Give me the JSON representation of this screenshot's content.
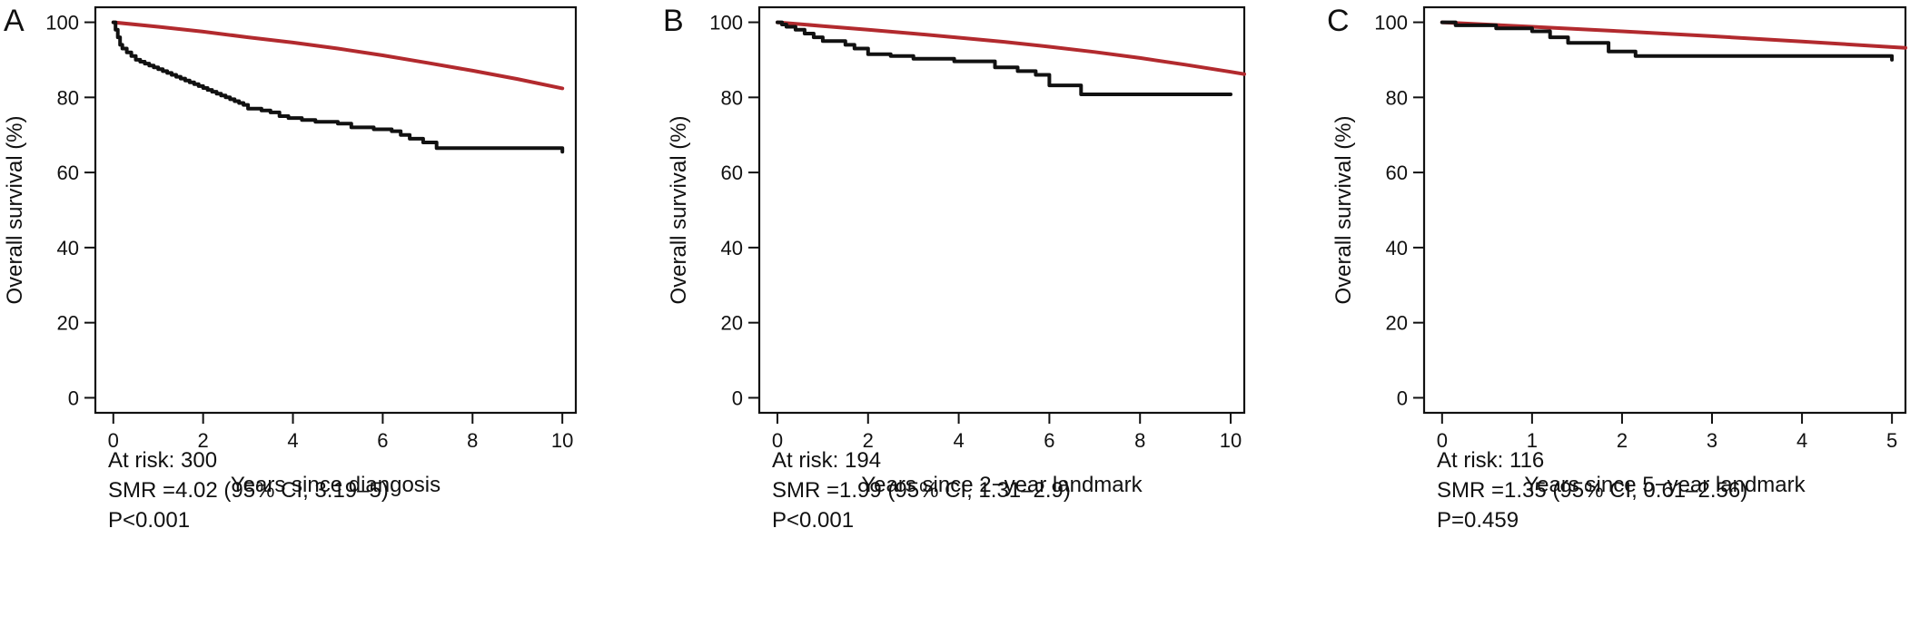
{
  "chart_data": [
    {
      "type": "line",
      "panel_label": "A",
      "xlabel": "Years since diangosis",
      "ylabel": "Overall survival (%)",
      "xlim": [
        -0.4,
        10.3
      ],
      "ylim": [
        -4,
        104
      ],
      "xticks": [
        0,
        2,
        4,
        6,
        8,
        10
      ],
      "yticks": [
        0,
        20,
        40,
        60,
        80,
        100
      ],
      "grid": false,
      "annotations": [
        "At risk: 300",
        "SMR =4.02 (95% CI, 3.19–5)",
        "P<0.001"
      ],
      "series": [
        {
          "color": "#b22a2e",
          "step": false,
          "x": [
            0,
            1,
            2,
            3,
            4,
            5,
            6,
            7,
            8,
            9,
            10
          ],
          "y": [
            100,
            98.8,
            97.5,
            96,
            94.6,
            93,
            91.2,
            89.2,
            87.1,
            84.9,
            82.4
          ]
        },
        {
          "color": "#111111",
          "step": true,
          "x": [
            0,
            0.05,
            0.1,
            0.15,
            0.2,
            0.3,
            0.4,
            0.5,
            0.6,
            0.7,
            0.8,
            0.9,
            1.0,
            1.1,
            1.2,
            1.3,
            1.4,
            1.5,
            1.6,
            1.7,
            1.8,
            1.9,
            2.0,
            2.1,
            2.2,
            2.3,
            2.4,
            2.5,
            2.6,
            2.7,
            2.8,
            2.9,
            3.0,
            3.3,
            3.5,
            3.7,
            3.9,
            4.2,
            4.5,
            5.0,
            5.3,
            5.8,
            6.2,
            6.4,
            6.6,
            6.9,
            7.2,
            10
          ],
          "y": [
            100,
            98,
            96,
            94,
            93,
            92,
            91,
            90,
            89.5,
            89,
            88.5,
            88,
            87.5,
            87,
            86.5,
            86,
            85.5,
            85,
            84.5,
            84,
            83.5,
            83,
            82.5,
            82,
            81.5,
            81,
            80.5,
            80,
            79.5,
            79,
            78.5,
            78,
            77,
            76.5,
            76,
            75,
            74.5,
            74,
            73.5,
            73,
            72,
            71.5,
            71,
            70,
            69,
            68,
            66.5,
            65.5
          ]
        }
      ]
    },
    {
      "type": "line",
      "panel_label": "B",
      "xlabel": "Years since 2−year landmark",
      "ylabel": "Overall survival (%)",
      "xlim": [
        -0.4,
        10.3
      ],
      "ylim": [
        -4,
        104
      ],
      "xticks": [
        0,
        2,
        4,
        6,
        8,
        10
      ],
      "yticks": [
        0,
        20,
        40,
        60,
        80,
        100
      ],
      "grid": false,
      "annotations": [
        "At risk: 194",
        "SMR =1.99 (95% CI, 1.31–2.9)",
        "P<0.001"
      ],
      "series": [
        {
          "color": "#b22a2e",
          "step": false,
          "x": [
            0,
            1,
            2,
            3,
            4,
            5,
            6,
            7,
            8,
            9,
            10,
            10.3
          ],
          "y": [
            100,
            99,
            98,
            97,
            95.9,
            94.8,
            93.5,
            92.1,
            90.5,
            88.7,
            86.8,
            86.2
          ]
        },
        {
          "color": "#111111",
          "step": true,
          "x": [
            0,
            0.1,
            0.2,
            0.4,
            0.6,
            0.8,
            1.0,
            1.5,
            1.7,
            2.0,
            2.5,
            3.0,
            3.9,
            4.8,
            5.3,
            5.7,
            6.0,
            6.7,
            10
          ],
          "y": [
            100,
            99.4,
            98.8,
            98,
            97,
            96,
            95,
            94,
            93,
            91.5,
            91,
            90.3,
            89.6,
            88,
            87,
            86,
            83.2,
            80.8,
            80.8
          ]
        }
      ]
    },
    {
      "type": "line",
      "panel_label": "C",
      "xlabel": "Years since 5−year landmark",
      "ylabel": "Overall survival (%)",
      "xlim": [
        -0.2,
        5.15
      ],
      "ylim": [
        -4,
        104
      ],
      "xticks": [
        0,
        1,
        2,
        3,
        4,
        5
      ],
      "yticks": [
        0,
        20,
        40,
        60,
        80,
        100
      ],
      "grid": false,
      "annotations": [
        "At risk: 116",
        "SMR =1.35 (95% CI, 0.61–2.56)",
        "P=0.459"
      ],
      "series": [
        {
          "color": "#b22a2e",
          "step": false,
          "x": [
            0,
            1,
            2,
            3,
            4,
            5,
            5.15
          ],
          "y": [
            100,
            98.8,
            97.6,
            96.3,
            94.9,
            93.4,
            93.2
          ]
        },
        {
          "color": "#111111",
          "step": true,
          "x": [
            0,
            0.15,
            0.6,
            1.0,
            1.2,
            1.4,
            1.85,
            2.15,
            5
          ],
          "y": [
            100,
            99.2,
            98.4,
            97.6,
            96,
            94.5,
            92.2,
            91,
            90
          ]
        }
      ]
    }
  ]
}
